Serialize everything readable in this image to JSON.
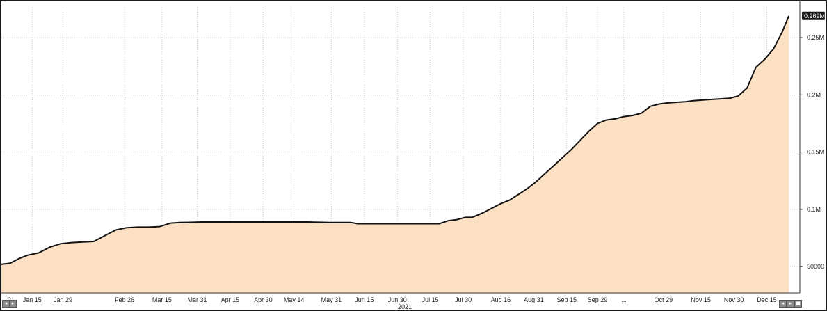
{
  "chart_data": {
    "type": "area",
    "x_axis": {
      "year_label": "2021",
      "ticks": [
        "Jan 15",
        "Jan 29",
        "Feb 26",
        "Mar 15",
        "Mar 31",
        "Apr 15",
        "Apr 30",
        "May 14",
        "May 31",
        "Jun 15",
        "Jun 30",
        "Jul 15",
        "Jul 30",
        "Aug 16",
        "Aug 31",
        "Sep 15",
        "Sep 29",
        "...",
        "Oct 29",
        "Nov 15",
        "Nov 30",
        "Dec 15"
      ],
      "tick_day_of_year": [
        15,
        29,
        57,
        74,
        90,
        105,
        120,
        134,
        151,
        166,
        181,
        196,
        211,
        228,
        243,
        258,
        272,
        284,
        302,
        319,
        334,
        349
      ],
      "left_edge_label": "21"
    },
    "y_axis": {
      "ticks": [
        {
          "label": "50000",
          "value": 50000
        },
        {
          "label": "0.1M",
          "value": 100000
        },
        {
          "label": "0.15M",
          "value": 150000
        },
        {
          "label": "0.2M",
          "value": 200000
        },
        {
          "label": "0.25M",
          "value": 250000
        }
      ],
      "ylim": [
        27000,
        278000
      ]
    },
    "xlim_day_of_year": [
      1,
      364
    ],
    "last_value_label": "0.269M",
    "series": [
      {
        "x_day_of_year": [
          1,
          5,
          9,
          13,
          18,
          23,
          28,
          33,
          38,
          43,
          48,
          53,
          58,
          63,
          68,
          73,
          78,
          82,
          87,
          92,
          100,
          110,
          120,
          130,
          140,
          150,
          160,
          163,
          170,
          180,
          190,
          200,
          204,
          208,
          212,
          215,
          220,
          224,
          228,
          232,
          236,
          240,
          244,
          248,
          252,
          256,
          260,
          264,
          268,
          272,
          276,
          280,
          284,
          288,
          292,
          296,
          300,
          304,
          308,
          312,
          316,
          320,
          324,
          328,
          332,
          336,
          340,
          344,
          348,
          352,
          356,
          359
        ],
        "values": [
          52000,
          53000,
          57000,
          60000,
          62000,
          67000,
          70000,
          71000,
          71500,
          72000,
          77000,
          82000,
          84000,
          84500,
          84500,
          85000,
          88000,
          88500,
          88700,
          89000,
          89000,
          89000,
          89000,
          89000,
          89000,
          88500,
          88500,
          87500,
          87500,
          87500,
          87500,
          87500,
          90000,
          91000,
          93000,
          93000,
          97000,
          101000,
          105000,
          108000,
          113000,
          118000,
          124000,
          131000,
          138000,
          145000,
          152000,
          160000,
          168000,
          175000,
          178000,
          179000,
          181000,
          182000,
          184000,
          190000,
          192000,
          193000,
          193500,
          194000,
          195000,
          195500,
          196000,
          196500,
          197000,
          199000,
          206000,
          224000,
          231000,
          240000,
          255000,
          269000
        ]
      }
    ],
    "colors": {
      "line": "#111111",
      "fill": "#fbe0c4",
      "grid": "#bdbdbd",
      "last_box": "#1a1a1a"
    },
    "grid": true
  },
  "nav": {
    "left_icons": [
      "chevron-left-icon",
      "chevron-right-icon"
    ],
    "right_icons": [
      "chevron-left-icon",
      "chevron-right-icon",
      "square-icon"
    ],
    "left_glyphs": [
      "◂",
      "▸"
    ],
    "right_glyphs": [
      "◂",
      "▸",
      "■"
    ]
  }
}
